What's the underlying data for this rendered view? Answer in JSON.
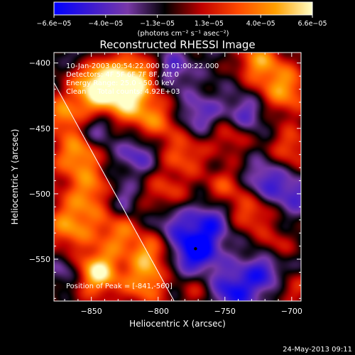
{
  "chart_data": {
    "type": "heatmap",
    "title": "Reconstructed RHESSI Image",
    "xlabel": "Heliocentric X (arcsec)",
    "ylabel": "Heliocentric Y (arcsec)",
    "xlim": [
      -878,
      -693
    ],
    "ylim": [
      -582,
      -392
    ],
    "xticks": [
      -850,
      -800,
      -750,
      -700
    ],
    "yticks": [
      -400,
      -450,
      -500,
      -550
    ],
    "xtick_labels": [
      "−850",
      "−800",
      "−750",
      "−700"
    ],
    "ytick_labels": [
      "−400",
      "−450",
      "−500",
      "−550"
    ],
    "colorbar": {
      "min": -6.6e-05,
      "max": 6.6e-05,
      "tick_labels": [
        "−6.6e−05",
        "−4.0e−05",
        "−1.3e−05",
        "1.3e−05",
        "4.0e−05",
        "6.6e−05"
      ],
      "unit_label": "(photons cm⁻² s⁻¹ asec⁻²)",
      "colors": [
        "#0000ff",
        "#3c1ad0",
        "#7838a8",
        "#000000",
        "#c00000",
        "#ff4a00",
        "#ffa000",
        "#ffffc8"
      ]
    },
    "info_lines": [
      "10-Jan-2003 00:54:22.000 to 01:00:22.000",
      "Detectors: 4F 5F 6F 7F 8F, Att 0",
      "Energy Range: 25.0 - 50.0 keV",
      "Clean     Total counts: 4.92E+03"
    ],
    "peak_label": "Position of Peak = [-841,-560]",
    "peak": [
      -841,
      -560
    ],
    "limb_line": [
      [
        -878,
        -415
      ],
      [
        -788,
        -582
      ]
    ],
    "minimum_marker": [
      -772,
      -542
    ],
    "bright_sources": [
      {
        "x": -845,
        "y": -410,
        "amp": 5.5e-05,
        "w": 14
      },
      {
        "x": -816,
        "y": -410,
        "amp": 6e-05,
        "w": 12
      },
      {
        "x": -845,
        "y": -428,
        "amp": 5e-05,
        "w": 14
      },
      {
        "x": -820,
        "y": -432,
        "amp": 4.5e-05,
        "w": 12
      },
      {
        "x": -800,
        "y": -445,
        "amp": 4e-05,
        "w": 12
      },
      {
        "x": -780,
        "y": -470,
        "amp": 4e-05,
        "w": 12
      },
      {
        "x": -705,
        "y": -420,
        "amp": 5.5e-05,
        "w": 14
      },
      {
        "x": -725,
        "y": -398,
        "amp": 5e-05,
        "w": 12
      },
      {
        "x": -700,
        "y": -465,
        "amp": 3.8e-05,
        "w": 12
      },
      {
        "x": -745,
        "y": -455,
        "amp": 3.5e-05,
        "w": 11
      },
      {
        "x": -860,
        "y": -470,
        "amp": 4.5e-05,
        "w": 12
      },
      {
        "x": -850,
        "y": -500,
        "amp": 4e-05,
        "w": 13
      },
      {
        "x": -866,
        "y": -525,
        "amp": 4.2e-05,
        "w": 12
      },
      {
        "x": -830,
        "y": -530,
        "amp": 3.5e-05,
        "w": 12
      },
      {
        "x": -845,
        "y": -560,
        "amp": 6.6e-05,
        "w": 11
      },
      {
        "x": -805,
        "y": -545,
        "amp": 4.5e-05,
        "w": 11
      },
      {
        "x": -795,
        "y": -500,
        "amp": 3.5e-05,
        "w": 12
      },
      {
        "x": -810,
        "y": -568,
        "amp": 4e-05,
        "w": 11
      },
      {
        "x": -750,
        "y": -495,
        "amp": 3.5e-05,
        "w": 11
      },
      {
        "x": -730,
        "y": -515,
        "amp": 4e-05,
        "w": 11
      },
      {
        "x": -712,
        "y": -540,
        "amp": 3e-05,
        "w": 10
      },
      {
        "x": -700,
        "y": -572,
        "amp": 3.2e-05,
        "w": 10
      },
      {
        "x": -770,
        "y": -575,
        "amp": 2.5e-05,
        "w": 10
      },
      {
        "x": -870,
        "y": -440,
        "amp": 3.5e-05,
        "w": 10
      }
    ],
    "dark_sources": [
      {
        "x": -772,
        "y": -542,
        "amp": -6.6e-05,
        "w": 12
      },
      {
        "x": -745,
        "y": -575,
        "amp": -4.5e-05,
        "w": 12
      },
      {
        "x": -720,
        "y": -560,
        "amp": -4e-05,
        "w": 12
      },
      {
        "x": -760,
        "y": -520,
        "amp": -3.5e-05,
        "w": 10
      },
      {
        "x": -720,
        "y": -490,
        "amp": -3.5e-05,
        "w": 11
      },
      {
        "x": -735,
        "y": -440,
        "amp": -3.5e-05,
        "w": 11
      },
      {
        "x": -770,
        "y": -440,
        "amp": -3e-05,
        "w": 11
      },
      {
        "x": -845,
        "y": -448,
        "amp": -3.5e-05,
        "w": 10
      },
      {
        "x": -815,
        "y": -470,
        "amp": -3e-05,
        "w": 10
      },
      {
        "x": -830,
        "y": -505,
        "amp": -3e-05,
        "w": 10
      },
      {
        "x": -790,
        "y": -520,
        "amp": -2.8e-05,
        "w": 10
      },
      {
        "x": -870,
        "y": -560,
        "amp": -3e-05,
        "w": 10
      },
      {
        "x": -855,
        "y": -395,
        "amp": -2.5e-05,
        "w": 9
      },
      {
        "x": -790,
        "y": -405,
        "amp": -3e-05,
        "w": 10
      },
      {
        "x": -698,
        "y": -500,
        "amp": -3e-05,
        "w": 10
      }
    ]
  },
  "footer": {
    "timestamp": "24-May-2013 09:11"
  }
}
